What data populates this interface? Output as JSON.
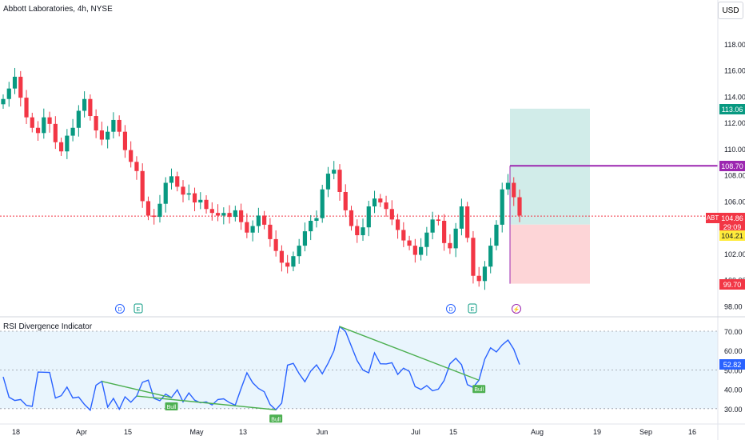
{
  "header": {
    "title": "Abbott Laboratories, 4h, NYSE",
    "currency_button": "USD"
  },
  "price_axis": {
    "ticks": [
      "118.00",
      "116.00",
      "114.00",
      "112.00",
      "110.00",
      "108.00",
      "106.00",
      "104.00",
      "102.00",
      "100.00",
      "98.00"
    ]
  },
  "rsi_axis": {
    "ticks": [
      "70.00",
      "60.00",
      "50.00",
      "40.00",
      "30.00"
    ]
  },
  "time_axis": {
    "ticks": [
      "18",
      "Apr",
      "15",
      "May",
      "13",
      "Jun",
      "Jul",
      "15",
      "Aug",
      "19",
      "Sep",
      "16"
    ]
  },
  "labels": {
    "target": "113.06",
    "entry_line": "108.70",
    "symbol": "ABT",
    "last_price": "104.86",
    "countdown": "29:09",
    "stop_entry": "104.21",
    "stop": "99.70",
    "rsi_value": "52.82"
  },
  "markers": {
    "dividend": "D",
    "earnings": "E",
    "split": "⚡",
    "bull": "Bull"
  },
  "rsi": {
    "title": "RSI Divergence Indicator"
  },
  "colors": {
    "up": "#089981",
    "down": "#f23645",
    "rsi_line": "#2962ff",
    "rsi_band": "#e3f2fd",
    "profit_zone": "#b2dfdb",
    "loss_zone": "#fccbcd",
    "entry_line": "#9c27b0",
    "bull": "#4caf50"
  },
  "chart_data": [
    {
      "type": "candlestick",
      "title": "Abbott Laboratories, 4h, NYSE",
      "ylim": [
        98,
        119
      ],
      "x_ticks": [
        "18",
        "Apr",
        "15",
        "May",
        "13",
        "Jun",
        "Jul",
        "15",
        "Aug",
        "19",
        "Sep",
        "16"
      ],
      "close": [
        113.8,
        114.6,
        115.5,
        113.9,
        112.4,
        111.6,
        111.2,
        112.4,
        111.9,
        110.5,
        109.8,
        111.0,
        111.6,
        112.9,
        113.8,
        112.5,
        111.4,
        110.7,
        111.3,
        112.2,
        111.3,
        109.9,
        109.0,
        108.3,
        106.0,
        104.9,
        104.8,
        105.8,
        107.4,
        107.9,
        107.1,
        106.5,
        106.6,
        105.9,
        106.1,
        105.4,
        105.1,
        104.9,
        105.1,
        104.8,
        105.3,
        104.4,
        103.6,
        104.1,
        104.9,
        104.2,
        103.1,
        102.2,
        101.3,
        101.0,
        101.8,
        102.6,
        103.7,
        104.5,
        104.7,
        106.9,
        108.1,
        108.4,
        106.7,
        105.3,
        104.1,
        103.4,
        104.0,
        105.6,
        106.2,
        105.9,
        105.4,
        104.6,
        103.8,
        103.0,
        102.6,
        101.9,
        102.5,
        103.6,
        104.6,
        104.5,
        102.8,
        102.4,
        103.9,
        105.6,
        103.2,
        100.3,
        99.9,
        101.0,
        102.6,
        104.2,
        106.9,
        107.4,
        106.3,
        104.9
      ],
      "rsi_ylim": [
        25,
        75
      ],
      "rsi_series": [
        46.4,
        35.9,
        34.2,
        34.7,
        31.7,
        31.2,
        48.9,
        48.8,
        48.7,
        35.5,
        36.7,
        41.1,
        35.5,
        36.0,
        32.2,
        29.2,
        42.1,
        44.1,
        30.8,
        35.3,
        29.7,
        36.1,
        33.3,
        36.5,
        43.6,
        44.7,
        35.3,
        34.1,
        37.5,
        35.7,
        39.7,
        33.5,
        38.1,
        34.4,
        33.0,
        33.5,
        31.9,
        34.7,
        35.1,
        33.1,
        31.8,
        40.4,
        48.5,
        43.4,
        40.4,
        38.7,
        32.1,
        29.4,
        32.9,
        52.5,
        53.4,
        48.1,
        43.9,
        49.4,
        52.6,
        48.0,
        53.5,
        59.8,
        72.4,
        69.9,
        62.3,
        54.8,
        49.9,
        48.5,
        58.8,
        53.2,
        53.1,
        53.7,
        47.7,
        50.9,
        49.2,
        41.4,
        39.9,
        41.9,
        39.2,
        40.1,
        44.5,
        53.2,
        56.0,
        52.7,
        42.4,
        41.0,
        44.7,
        55.5,
        61.4,
        59.3,
        62.9,
        65.4,
        60.7,
        52.8
      ],
      "levels": {
        "target": 113.06,
        "entry": 108.7,
        "last": 104.86,
        "stop_entry": 104.21,
        "stop": 99.7
      }
    }
  ]
}
